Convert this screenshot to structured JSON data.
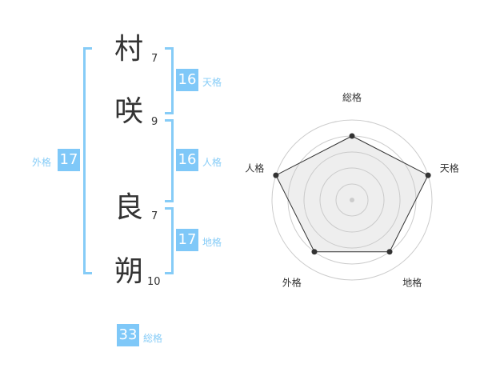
{
  "name": {
    "chars": [
      {
        "char": "村",
        "strokes": "7"
      },
      {
        "char": "咲",
        "strokes": "9"
      },
      {
        "char": "良",
        "strokes": "7"
      },
      {
        "char": "朔",
        "strokes": "10"
      }
    ]
  },
  "kaku": {
    "tenkaku": {
      "value": "16",
      "label": "天格"
    },
    "jinkaku": {
      "value": "16",
      "label": "人格"
    },
    "chikaku": {
      "value": "17",
      "label": "地格"
    },
    "gaikaku": {
      "value": "17",
      "label": "外格"
    },
    "soukaku": {
      "value": "33",
      "label": "総格"
    }
  },
  "colors": {
    "accent": "#7fc8f8",
    "bracket": "#86ccf7",
    "text": "#333333"
  },
  "chart_data": {
    "type": "radar",
    "axes": [
      "総格",
      "天格",
      "地格",
      "外格",
      "人格"
    ],
    "values": [
      4,
      5,
      4,
      4,
      5
    ],
    "range": [
      0,
      5
    ],
    "rings": 5
  }
}
